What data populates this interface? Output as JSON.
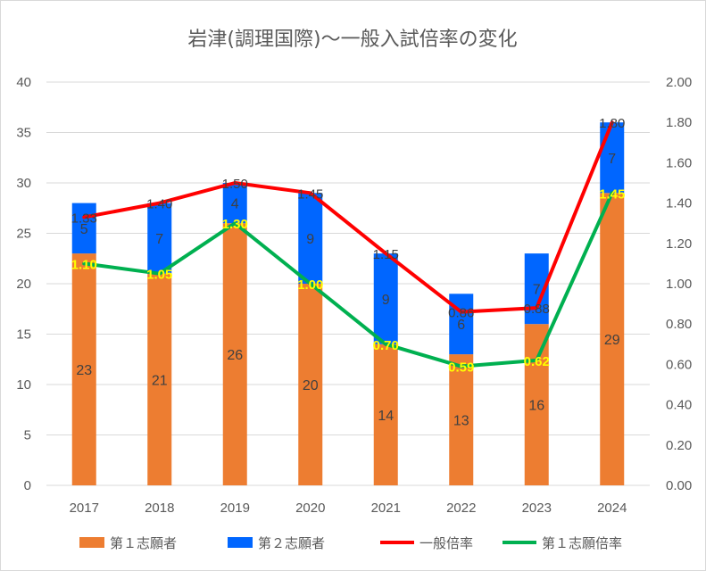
{
  "chart_data": {
    "type": "bar+line",
    "title": "岩津(調理国際)～一般入試倍率の変化",
    "categories": [
      "2017",
      "2018",
      "2019",
      "2020",
      "2021",
      "2022",
      "2023",
      "2024"
    ],
    "series": [
      {
        "name": "第１志願者",
        "kind": "stacked-bar",
        "axis": "left",
        "color": "#ed7d31",
        "values": [
          23,
          21,
          26,
          20,
          14,
          13,
          16,
          29
        ]
      },
      {
        "name": "第２志願者",
        "kind": "stacked-bar",
        "axis": "left",
        "color": "#0066ff",
        "values": [
          5,
          7,
          4,
          9,
          9,
          6,
          7,
          7
        ]
      },
      {
        "name": "一般倍率",
        "kind": "line",
        "axis": "right",
        "color": "#ff0000",
        "values": [
          1.33,
          1.4,
          1.5,
          1.45,
          1.15,
          0.86,
          0.88,
          1.8
        ],
        "labels": [
          "1.33",
          "1.40",
          "1.50",
          "1.45",
          "1.15",
          "0.86",
          "0.88",
          "1.80"
        ]
      },
      {
        "name": "第１志願倍率",
        "kind": "line",
        "axis": "right",
        "color": "#00b050",
        "values": [
          1.1,
          1.05,
          1.3,
          1.0,
          0.7,
          0.59,
          0.62,
          1.45
        ],
        "labels": [
          "1.10",
          "1.05",
          "1.30",
          "1.00",
          "0.70",
          "0.59",
          "0.62",
          "1.45"
        ]
      }
    ],
    "yleft": {
      "min": 0,
      "max": 40,
      "step": 5,
      "ticks": [
        "0",
        "5",
        "10",
        "15",
        "20",
        "25",
        "30",
        "35",
        "40"
      ]
    },
    "yright": {
      "min": 0,
      "max": 2,
      "step": 0.2,
      "ticks": [
        "0.00",
        "0.20",
        "0.40",
        "0.60",
        "0.80",
        "1.00",
        "1.20",
        "1.40",
        "1.60",
        "1.80",
        "2.00"
      ]
    },
    "legend_position": "bottom",
    "grid": true
  }
}
